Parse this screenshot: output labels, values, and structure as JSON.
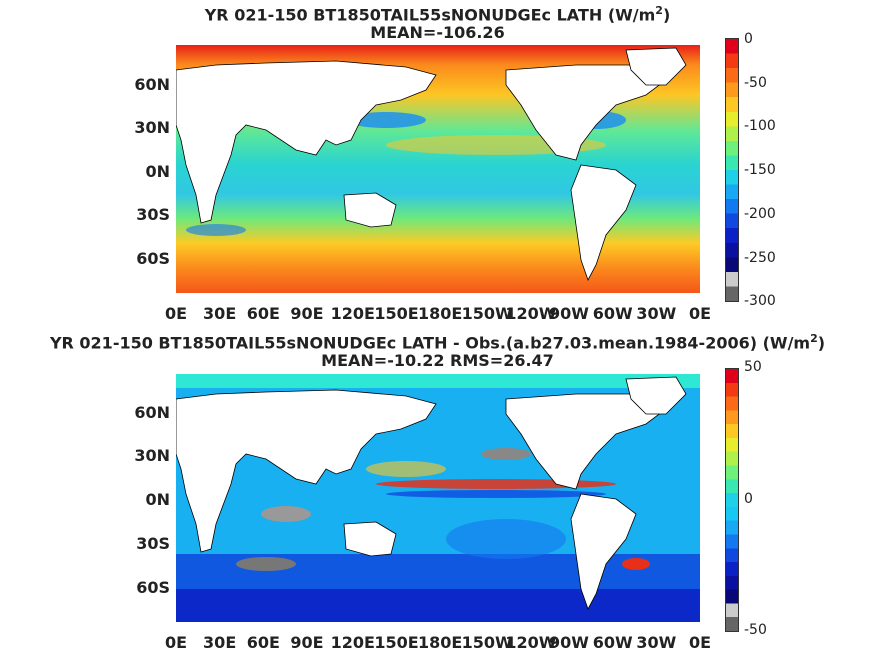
{
  "panel_top": {
    "title_line1": "YR 021-150 BT1850TAIL55sNONUDGEc  LATH (W/m",
    "title_sup": "2",
    "title_close": ")",
    "title_line2": "MEAN=-106.26",
    "colorbar_ticks": [
      "0",
      "-50",
      "-100",
      "-150",
      "-200",
      "-250",
      "-300"
    ],
    "colorbar_colors": [
      "#e0001a",
      "#f43a12",
      "#fb6a16",
      "#fd9a1e",
      "#fdc824",
      "#e7ec2c",
      "#b0f04a",
      "#6ef07c",
      "#38e8b0",
      "#1ed0e8",
      "#18a8f4",
      "#1478f0",
      "#1048e0",
      "#0c20c8",
      "#0a10a0",
      "#080878",
      "#cccccc",
      "#666666"
    ]
  },
  "panel_bottom": {
    "title_line1": "YR 021-150 BT1850TAIL55sNONUDGEc LATH - Obs.(a.b27.03.mean.1984-2006) (W/m",
    "title_sup": "2",
    "title_close": ")",
    "title_line2": "MEAN=-10.22 RMS=26.47",
    "colorbar_ticks": [
      "50",
      "0",
      "-50"
    ],
    "colorbar_colors": [
      "#e0001a",
      "#f43a12",
      "#fb6a16",
      "#fd9a1e",
      "#fdc824",
      "#e7ec2c",
      "#b0f04a",
      "#6ef07c",
      "#38e8b0",
      "#1ed0e8",
      "#18c8f4",
      "#18a8f4",
      "#1478f0",
      "#1048e0",
      "#0c20c8",
      "#0a10a0",
      "#080878",
      "#cccccc",
      "#666666"
    ]
  },
  "lat_labels": [
    "60N",
    "30N",
    "0N",
    "30S",
    "60S"
  ],
  "lon_labels": [
    "0E",
    "30E",
    "60E",
    "90E",
    "120E",
    "150E",
    "180E",
    "150W",
    "120W",
    "90W",
    "60W",
    "30W",
    "0E"
  ]
}
